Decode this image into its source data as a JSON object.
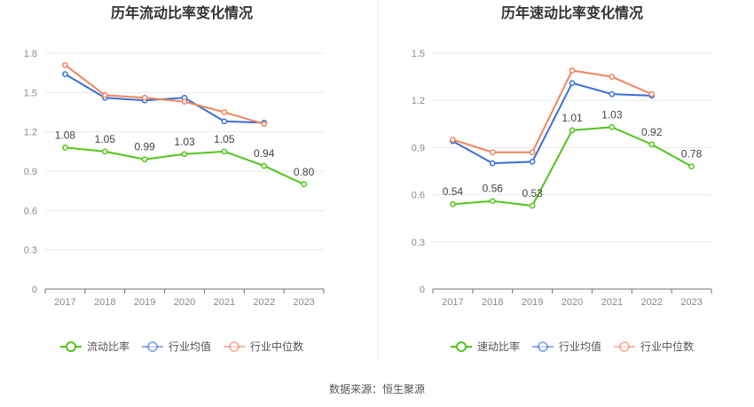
{
  "chart_data": [
    {
      "type": "line",
      "title": "历年流动比率变化情况",
      "categories": [
        "2017",
        "2018",
        "2019",
        "2020",
        "2021",
        "2022",
        "2023"
      ],
      "ylim": [
        0,
        1.8
      ],
      "yticks": [
        "0",
        "0.3",
        "0.6",
        "0.9",
        "1.2",
        "1.5",
        "1.8"
      ],
      "grid": true,
      "legend_position": "bottom",
      "series": [
        {
          "name": "流动比率",
          "color": "#52c41a",
          "values": [
            1.08,
            1.05,
            0.99,
            1.03,
            1.05,
            0.94,
            0.8
          ],
          "labels": [
            "1.08",
            "1.05",
            "0.99",
            "1.03",
            "1.05",
            "0.94",
            "0.80"
          ]
        },
        {
          "name": "行业均值",
          "color": "#3a6fd8",
          "values": [
            1.64,
            1.46,
            1.44,
            1.46,
            1.28,
            1.27,
            null
          ]
        },
        {
          "name": "行业中位数",
          "color": "#f0845c",
          "values": [
            1.71,
            1.48,
            1.46,
            1.43,
            1.35,
            1.26,
            null
          ]
        }
      ]
    },
    {
      "type": "line",
      "title": "历年速动比率变化情况",
      "categories": [
        "2017",
        "2018",
        "2019",
        "2020",
        "2021",
        "2022",
        "2023"
      ],
      "ylim": [
        0,
        1.5
      ],
      "yticks": [
        "0",
        "0.3",
        "0.6",
        "0.9",
        "1.2",
        "1.5"
      ],
      "grid": true,
      "legend_position": "bottom",
      "series": [
        {
          "name": "速动比率",
          "color": "#52c41a",
          "values": [
            0.54,
            0.56,
            0.53,
            1.01,
            1.03,
            0.92,
            0.78
          ],
          "labels": [
            "0.54",
            "0.56",
            "0.53",
            "1.01",
            "1.03",
            "0.92",
            "0.78"
          ]
        },
        {
          "name": "行业均值",
          "color": "#3a6fd8",
          "values": [
            0.94,
            0.8,
            0.81,
            1.31,
            1.24,
            1.23,
            null
          ]
        },
        {
          "name": "行业中位数",
          "color": "#f0845c",
          "values": [
            0.95,
            0.87,
            0.87,
            1.39,
            1.35,
            1.24,
            null
          ]
        }
      ]
    }
  ],
  "footer": {
    "source": "数据来源：恒生聚源"
  }
}
